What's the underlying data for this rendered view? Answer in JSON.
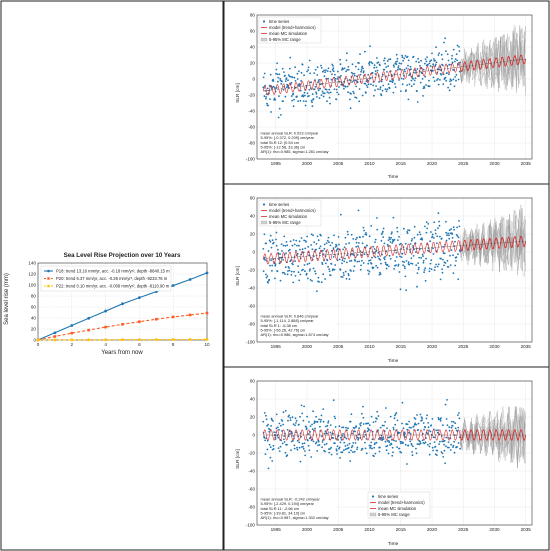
{
  "chart_data": [
    {
      "type": "line",
      "title": "Sea Level Rise Projection over 10 Years",
      "xlabel": "Years from now",
      "ylabel": "Sea level rise (mm)",
      "xlim": [
        0,
        10
      ],
      "ylim": [
        0,
        140
      ],
      "xticks": [
        0,
        2,
        4,
        6,
        8,
        10
      ],
      "yticks": [
        0,
        20,
        40,
        60,
        80,
        100,
        120,
        140
      ],
      "grid": true,
      "legend_position": "top-left",
      "x": [
        0,
        1,
        2,
        3,
        4,
        5,
        6,
        7,
        8,
        9,
        10
      ],
      "series": [
        {
          "name": "P18: trend 13.16 mm/yr, acc. -0.18 mm/yr², depth -8840.15 m",
          "color": "#1f77b4",
          "style": "solid",
          "marker": "circle",
          "values": [
            0,
            13.2,
            26.3,
            39.5,
            52.6,
            65.8,
            77.0,
            88.0,
            99.0,
            110.0,
            122.0
          ]
        },
        {
          "name": "P20: trend 6.37 mm/yr, acc. -0.26 mm/yr², depth -9233.76 m",
          "color": "#ff5a1f",
          "style": "dashed",
          "marker": "square",
          "values": [
            0,
            6.4,
            12.5,
            18.0,
            23.5,
            28.6,
            33.3,
            37.8,
            41.9,
            45.5,
            49.0
          ]
        },
        {
          "name": "P22: trend 0.10 mm/yr, acc. -0.009 mm/yr², depth -8110.90 m",
          "color": "#ffc107",
          "style": "dashed",
          "marker": "square",
          "values": [
            0,
            0.1,
            0.2,
            0.3,
            0.4,
            0.5,
            0.6,
            0.7,
            0.8,
            0.9,
            1.0
          ]
        }
      ]
    },
    {
      "type": "scatter",
      "title": "",
      "xlabel": "Time",
      "ylabel": "SLR [cm]",
      "xlim": [
        1992,
        2036
      ],
      "ylim": [
        -100,
        80
      ],
      "xticks": [
        1995,
        2000,
        2005,
        2010,
        2015,
        2020,
        2025,
        2030,
        2035
      ],
      "yticks": [
        -100,
        -80,
        -60,
        -40,
        -20,
        0,
        20,
        40,
        60,
        80
      ],
      "grid": true,
      "legend_position": "top-left",
      "legend": [
        "time series",
        "model (trend+harmonics)",
        "mean MC simulation",
        "5-95% MC range"
      ],
      "stats": [
        "mean annual SLR: 0.023 cm/year",
        "5-95%: [-0.372, 0.209] cm/year",
        "total SLR 12: [0.54 cm",
        "5-95%: [-12.58, 33.36] cm",
        "AR(1): rho=0.985, sigma=1.281 cm/day"
      ],
      "observed_years": [
        1993,
        2024.5
      ],
      "projection_years": [
        2024.5,
        2035
      ],
      "trend_start": -15,
      "trend_end": 25,
      "noise_amp": 22,
      "mc_amp": 45
    },
    {
      "type": "scatter",
      "title": "",
      "xlabel": "Time",
      "ylabel": "SLR [cm]",
      "xlim": [
        1992,
        2036
      ],
      "ylim": [
        -100,
        60
      ],
      "xticks": [
        1995,
        2000,
        2005,
        2010,
        2015,
        2020,
        2025,
        2030,
        2035
      ],
      "yticks": [
        -100,
        -80,
        -60,
        -40,
        -20,
        0,
        20,
        40,
        60
      ],
      "grid": true,
      "legend_position": "top-left",
      "legend": [
        "time series",
        "model (trend+harmonics)",
        "mean MC simulation",
        "5-95% MC range"
      ],
      "stats": [
        "mean annual SLR: 0.846 cm/year",
        "5-95%: [-1.114, 2.888] cm/year",
        "total SLR 1: -6.38 cm",
        "5-95%: [-56.26, 42.76] cm",
        "AR(1): rho=0.986, sigma=1.874 cm/day"
      ],
      "observed_years": [
        1993,
        2024.5
      ],
      "projection_years": [
        2024.5,
        2035
      ],
      "trend_start": -8,
      "trend_end": 12,
      "noise_amp": 24,
      "mc_amp": 38
    },
    {
      "type": "scatter",
      "title": "",
      "xlabel": "Time",
      "ylabel": "SLR [cm]",
      "xlim": [
        1992,
        2036
      ],
      "ylim": [
        -100,
        60
      ],
      "xticks": [
        1995,
        2000,
        2005,
        2010,
        2015,
        2020,
        2025,
        2030,
        2035
      ],
      "yticks": [
        -100,
        -80,
        -60,
        -40,
        -20,
        0,
        20,
        40,
        60
      ],
      "grid": true,
      "legend_position": "bottom-center",
      "legend": [
        "time series",
        "model (trend+harmonics)",
        "mean MC simulation",
        "5-95% MC range"
      ],
      "stats": [
        "mean annual SLR: -0.242 cm/year",
        "5-95%: [-2.429, 0.194] cm/year",
        "total SLR 11: -2.66 cm",
        "5-95%: [-39.81, 34.10] cm",
        "AR(1): rho=0.987, sigma=1.302 cm/day"
      ],
      "observed_years": [
        1993,
        2024.5
      ],
      "projection_years": [
        2024.5,
        2035
      ],
      "trend_start": 0,
      "trend_end": 0,
      "noise_amp": 20,
      "mc_amp": 35
    }
  ]
}
